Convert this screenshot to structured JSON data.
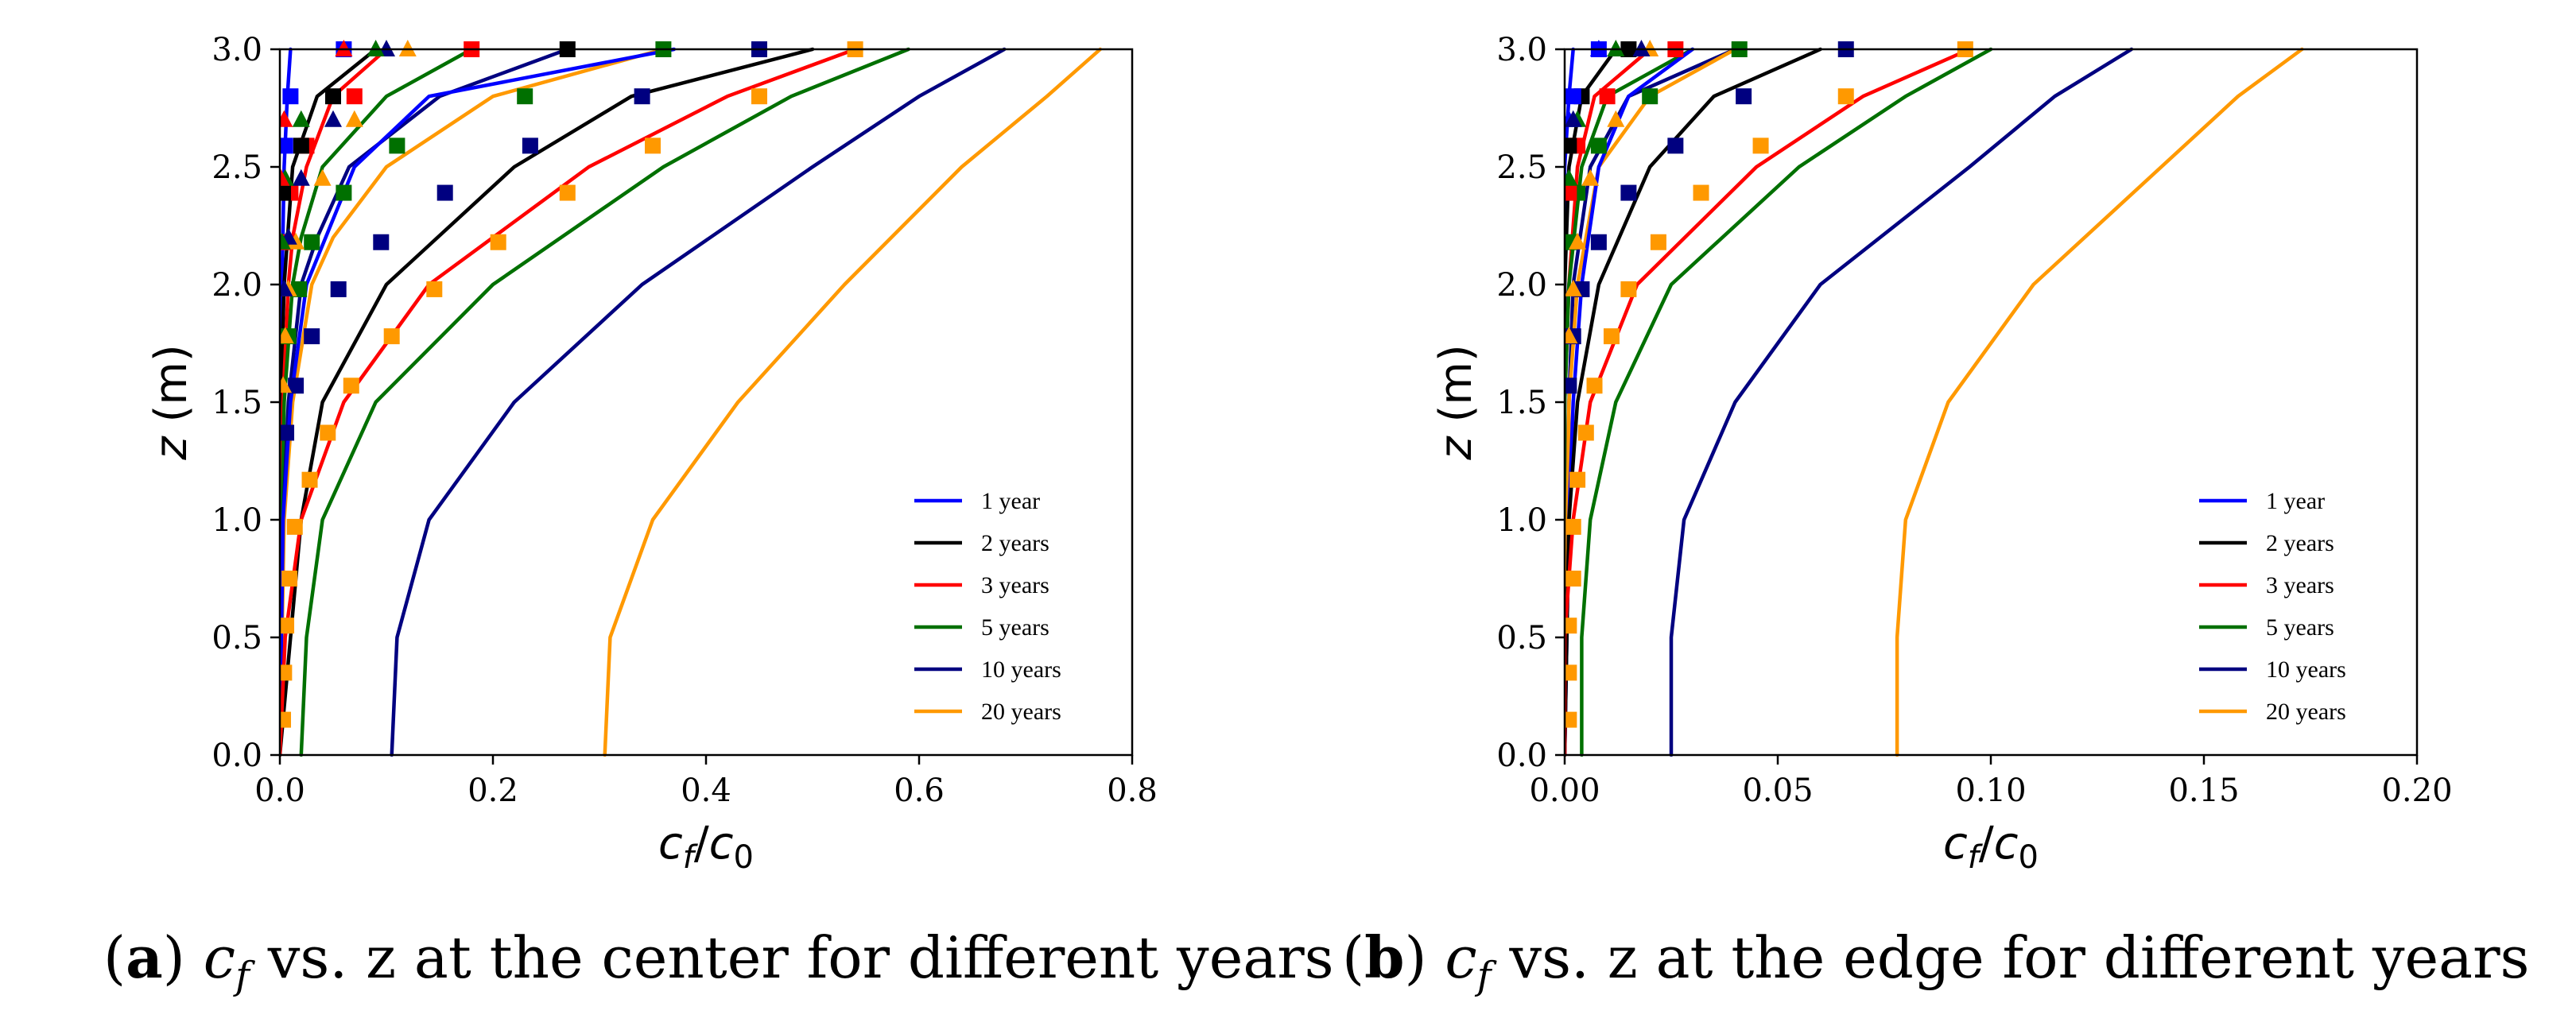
{
  "chart_data": [
    {
      "type": "line",
      "panel": "a",
      "xlabel": "c_f/c_0",
      "ylabel": "z (m)",
      "xlim": [
        0,
        0.8
      ],
      "ylim": [
        0,
        3.0
      ],
      "xticks": [
        "0.0",
        "0.2",
        "0.4",
        "0.6",
        "0.8"
      ],
      "yticks": [
        "0.0",
        "0.5",
        "1.0",
        "1.5",
        "2.0",
        "2.5",
        "3.0"
      ],
      "legend_position": "lower-right",
      "caption": {
        "label": "(a)",
        "text": "vs. z at the center for different years",
        "symbol": "c",
        "sub": "f"
      },
      "series": [
        {
          "name": "1 year",
          "color": "#0000ff",
          "y": [
            0,
            1.0,
            1.5,
            2.0,
            2.5,
            2.8,
            3.0
          ],
          "x": [
            0.0,
            0.0,
            0.0,
            0.002,
            0.004,
            0.007,
            0.01
          ]
        },
        {
          "name": "2 years",
          "color": "#000000",
          "y": [
            0,
            1.0,
            1.5,
            2.0,
            2.5,
            2.8,
            3.0
          ],
          "x": [
            0.0,
            0.0,
            0.001,
            0.004,
            0.012,
            0.035,
            0.09
          ]
        },
        {
          "name": "3 years",
          "color": "#ff0000",
          "y": [
            0,
            1.0,
            1.5,
            2.0,
            2.2,
            2.5,
            2.8,
            3.0
          ],
          "x": [
            0.0,
            0.001,
            0.003,
            0.008,
            0.012,
            0.025,
            0.05,
            0.1
          ]
        },
        {
          "name": "5 years",
          "color": "#007000",
          "y": [
            0,
            1.0,
            1.5,
            2.0,
            2.2,
            2.5,
            2.8,
            3.0
          ],
          "x": [
            0.0,
            0.002,
            0.004,
            0.012,
            0.02,
            0.04,
            0.1,
            0.18
          ]
        },
        {
          "name": "10 years",
          "color": "#000080",
          "y": [
            0,
            1.0,
            1.5,
            2.0,
            2.2,
            2.5,
            2.8,
            3.0
          ],
          "x": [
            0.0,
            0.003,
            0.008,
            0.02,
            0.035,
            0.065,
            0.15,
            0.27
          ]
        },
        {
          "name": "20 years",
          "color": "#ff9900",
          "y": [
            0,
            1.0,
            1.5,
            2.0,
            2.2,
            2.5,
            2.8,
            3.0
          ],
          "x": [
            0.0,
            0.004,
            0.012,
            0.03,
            0.05,
            0.1,
            0.2,
            0.36
          ]
        },
        {
          "name": "",
          "color": "#0000ff",
          "y": [
            0,
            1.0,
            1.5,
            2.0,
            2.5,
            2.8,
            3.0
          ],
          "x": [
            0.0,
            0.003,
            0.01,
            0.025,
            0.07,
            0.14,
            0.37
          ]
        },
        {
          "name": "",
          "color": "#000000",
          "y": [
            0,
            1.0,
            1.5,
            2.0,
            2.5,
            2.8,
            3.0
          ],
          "x": [
            0.0,
            0.02,
            0.04,
            0.1,
            0.22,
            0.33,
            0.5
          ]
        },
        {
          "name": "",
          "color": "#ff0000",
          "y": [
            0,
            0.5,
            1.0,
            1.5,
            2.0,
            2.5,
            2.8,
            3.0
          ],
          "x": [
            0.0,
            0.005,
            0.02,
            0.06,
            0.14,
            0.29,
            0.42,
            0.54
          ]
        },
        {
          "name": "",
          "color": "#007000",
          "y": [
            0,
            0.5,
            1.0,
            1.5,
            2.0,
            2.5,
            2.8,
            3.0
          ],
          "x": [
            0.02,
            0.025,
            0.04,
            0.09,
            0.2,
            0.36,
            0.48,
            0.59
          ]
        },
        {
          "name": "",
          "color": "#000080",
          "y": [
            0,
            0.5,
            1.0,
            1.5,
            2.0,
            2.5,
            2.8,
            3.0
          ],
          "x": [
            0.105,
            0.11,
            0.14,
            0.22,
            0.34,
            0.5,
            0.6,
            0.68
          ]
        },
        {
          "name": "",
          "color": "#ff9900",
          "y": [
            0,
            0.5,
            1.0,
            1.5,
            2.0,
            2.5,
            2.8,
            3.0
          ],
          "x": [
            0.305,
            0.31,
            0.35,
            0.43,
            0.53,
            0.64,
            0.72,
            0.77
          ]
        }
      ],
      "markers": [
        {
          "color": "#ff9900",
          "shape": "square",
          "y": [
            0.15,
            0.35,
            0.55,
            0.75,
            0.97,
            1.17,
            1.37,
            1.57,
            1.78,
            1.98,
            2.18,
            2.39,
            2.59,
            2.8,
            3.0
          ],
          "x": [
            0.003,
            0.004,
            0.006,
            0.009,
            0.014,
            0.028,
            0.045,
            0.067,
            0.105,
            0.145,
            0.205,
            0.27,
            0.35,
            0.45,
            0.54
          ]
        },
        {
          "color": "#000080",
          "shape": "square",
          "y": [
            1.37,
            1.57,
            1.78,
            1.98,
            2.18,
            2.39,
            2.59,
            2.8,
            3.0
          ],
          "x": [
            0.006,
            0.015,
            0.03,
            0.055,
            0.095,
            0.155,
            0.235,
            0.34,
            0.45
          ]
        },
        {
          "color": "#007000",
          "shape": "square",
          "y": [
            1.78,
            1.98,
            2.18,
            2.39,
            2.59,
            2.8,
            3.0
          ],
          "x": [
            0.008,
            0.018,
            0.03,
            0.06,
            0.11,
            0.23,
            0.36
          ]
        },
        {
          "color": "#ff0000",
          "shape": "square",
          "y": [
            2.18,
            2.39,
            2.59,
            2.8,
            3.0
          ],
          "x": [
            0.003,
            0.01,
            0.025,
            0.07,
            0.18
          ]
        },
        {
          "color": "#000000",
          "shape": "square",
          "y": [
            2.39,
            2.59,
            2.8,
            3.0
          ],
          "x": [
            0.003,
            0.02,
            0.05,
            0.27
          ]
        },
        {
          "color": "#0000ff",
          "shape": "square",
          "y": [
            2.59,
            2.8,
            3.0
          ],
          "x": [
            0.005,
            0.01,
            0.06
          ]
        },
        {
          "color": "#ff9900",
          "shape": "triangle",
          "y": [
            1.57,
            1.78,
            1.98,
            2.18,
            2.45,
            2.7,
            3.0
          ],
          "x": [
            0.003,
            0.005,
            0.008,
            0.015,
            0.04,
            0.07,
            0.12
          ]
        },
        {
          "color": "#000080",
          "shape": "triangle",
          "y": [
            1.98,
            2.2,
            2.45,
            2.7,
            3.0
          ],
          "x": [
            0.004,
            0.008,
            0.02,
            0.05,
            0.1
          ]
        },
        {
          "color": "#007000",
          "shape": "triangle",
          "y": [
            2.18,
            2.45,
            2.7,
            3.0
          ],
          "x": [
            0.002,
            0.005,
            0.02,
            0.09
          ]
        },
        {
          "color": "#ff0000",
          "shape": "triangle",
          "y": [
            2.45,
            2.7,
            3.0
          ],
          "x": [
            0.001,
            0.004,
            0.06
          ]
        }
      ]
    },
    {
      "type": "line",
      "panel": "b",
      "xlabel": "c_f/c_0",
      "ylabel": "z (m)",
      "xlim": [
        0,
        0.2
      ],
      "ylim": [
        0,
        3.0
      ],
      "xticks": [
        "0.00",
        "0.05",
        "0.10",
        "0.15",
        "0.20"
      ],
      "yticks": [
        "0.0",
        "0.5",
        "1.0",
        "1.5",
        "2.0",
        "2.5",
        "3.0"
      ],
      "legend_position": "lower-right",
      "caption": {
        "label": "(b)",
        "text": "vs. z at the edge for different years",
        "symbol": "c",
        "sub": "f"
      },
      "series": [
        {
          "name": "1 year",
          "color": "#0000ff",
          "y": [
            0,
            1.5,
            2.0,
            2.5,
            2.8,
            3.0
          ],
          "x": [
            0.0,
            0.0,
            0.0,
            0.0,
            0.001,
            0.002
          ]
        },
        {
          "name": "2 years",
          "color": "#000000",
          "y": [
            0,
            1.5,
            2.0,
            2.5,
            2.8,
            3.0
          ],
          "x": [
            0.0,
            0.0,
            0.0,
            0.001,
            0.004,
            0.012
          ]
        },
        {
          "name": "3 years",
          "color": "#ff0000",
          "y": [
            0,
            1.5,
            2.0,
            2.5,
            2.8,
            3.0
          ],
          "x": [
            0.0,
            0.0,
            0.001,
            0.003,
            0.007,
            0.02
          ]
        },
        {
          "name": "5 years",
          "color": "#007000",
          "y": [
            0,
            1.5,
            2.0,
            2.5,
            2.8,
            3.0
          ],
          "x": [
            0.0,
            0.0,
            0.001,
            0.004,
            0.01,
            0.03
          ]
        },
        {
          "name": "10 years",
          "color": "#000080",
          "y": [
            0,
            1.5,
            2.0,
            2.5,
            2.8,
            3.0
          ],
          "x": [
            0.0,
            0.001,
            0.002,
            0.006,
            0.015,
            0.04
          ]
        },
        {
          "name": "20 years",
          "color": "#ff9900",
          "y": [
            0,
            1.5,
            2.0,
            2.5,
            2.8,
            3.0
          ],
          "x": [
            0.0,
            0.001,
            0.003,
            0.008,
            0.02,
            0.04
          ]
        },
        {
          "name": "",
          "color": "#0000ff",
          "y": [
            0,
            1.0,
            1.5,
            2.0,
            2.5,
            2.8,
            3.0
          ],
          "x": [
            0.0,
            0.001,
            0.002,
            0.004,
            0.008,
            0.015,
            0.03
          ]
        },
        {
          "name": "",
          "color": "#000000",
          "y": [
            0,
            1.0,
            1.5,
            2.0,
            2.5,
            2.8,
            3.0
          ],
          "x": [
            0.0,
            0.001,
            0.003,
            0.008,
            0.02,
            0.035,
            0.06
          ]
        },
        {
          "name": "",
          "color": "#ff0000",
          "y": [
            0,
            0.5,
            1.0,
            1.5,
            2.0,
            2.5,
            2.8,
            3.0
          ],
          "x": [
            0.0,
            0.0,
            0.002,
            0.006,
            0.017,
            0.045,
            0.07,
            0.095
          ]
        },
        {
          "name": "",
          "color": "#007000",
          "y": [
            0,
            0.5,
            1.0,
            1.5,
            2.0,
            2.5,
            2.8,
            3.0
          ],
          "x": [
            0.004,
            0.004,
            0.006,
            0.012,
            0.025,
            0.055,
            0.08,
            0.1
          ]
        },
        {
          "name": "",
          "color": "#000080",
          "y": [
            0,
            0.5,
            1.0,
            1.5,
            2.0,
            2.5,
            2.8,
            3.0
          ],
          "x": [
            0.025,
            0.025,
            0.028,
            0.04,
            0.06,
            0.095,
            0.115,
            0.133
          ]
        },
        {
          "name": "",
          "color": "#ff9900",
          "y": [
            0,
            0.5,
            1.0,
            1.5,
            2.0,
            2.5,
            2.8,
            3.0
          ],
          "x": [
            0.078,
            0.078,
            0.08,
            0.09,
            0.11,
            0.14,
            0.158,
            0.173
          ]
        }
      ],
      "markers": [
        {
          "color": "#ff9900",
          "shape": "square",
          "y": [
            0.15,
            0.35,
            0.55,
            0.75,
            0.97,
            1.17,
            1.37,
            1.57,
            1.78,
            1.98,
            2.18,
            2.39,
            2.59,
            2.8,
            3.0
          ],
          "x": [
            0.001,
            0.001,
            0.001,
            0.002,
            0.002,
            0.003,
            0.005,
            0.007,
            0.011,
            0.015,
            0.022,
            0.032,
            0.046,
            0.066,
            0.094
          ]
        },
        {
          "color": "#000080",
          "shape": "square",
          "y": [
            1.57,
            1.78,
            1.98,
            2.18,
            2.39,
            2.59,
            2.8,
            3.0
          ],
          "x": [
            0.001,
            0.002,
            0.004,
            0.008,
            0.015,
            0.026,
            0.042,
            0.066
          ]
        },
        {
          "color": "#007000",
          "shape": "square",
          "y": [
            2.18,
            2.39,
            2.59,
            2.8,
            3.0
          ],
          "x": [
            0.001,
            0.003,
            0.008,
            0.02,
            0.041
          ]
        },
        {
          "color": "#ff0000",
          "shape": "square",
          "y": [
            2.39,
            2.59,
            2.8,
            3.0
          ],
          "x": [
            0.001,
            0.003,
            0.01,
            0.026
          ]
        },
        {
          "color": "#000000",
          "shape": "square",
          "y": [
            2.59,
            2.8,
            3.0
          ],
          "x": [
            0.001,
            0.004,
            0.015
          ]
        },
        {
          "color": "#0000ff",
          "shape": "square",
          "y": [
            2.8,
            3.0
          ],
          "x": [
            0.002,
            0.008
          ]
        },
        {
          "color": "#ff9900",
          "shape": "triangle",
          "y": [
            1.78,
            1.98,
            2.18,
            2.45,
            2.7,
            3.0
          ],
          "x": [
            0.001,
            0.002,
            0.003,
            0.006,
            0.012,
            0.02
          ]
        },
        {
          "color": "#007000",
          "shape": "triangle",
          "y": [
            2.45,
            2.7,
            3.0
          ],
          "x": [
            0.001,
            0.003,
            0.012
          ]
        },
        {
          "color": "#0000ff",
          "shape": "triangle",
          "y": [
            2.7,
            3.0
          ],
          "x": [
            0.001,
            0.008
          ]
        },
        {
          "color": "#000080",
          "shape": "triangle",
          "y": [
            2.7,
            3.0
          ],
          "x": [
            0.002,
            0.018
          ]
        }
      ]
    }
  ]
}
